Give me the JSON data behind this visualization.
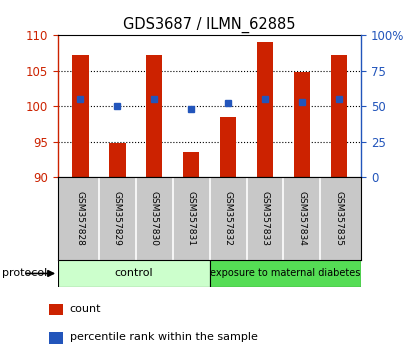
{
  "title": "GDS3687 / ILMN_62885",
  "samples": [
    "GSM357828",
    "GSM357829",
    "GSM357830",
    "GSM357831",
    "GSM357832",
    "GSM357833",
    "GSM357834",
    "GSM357835"
  ],
  "bar_values": [
    107.2,
    94.8,
    107.2,
    93.5,
    98.5,
    109.0,
    104.8,
    107.2
  ],
  "bar_base": 90,
  "blue_pct": [
    55,
    50,
    55,
    48,
    52,
    55,
    53,
    55
  ],
  "ylim_left": [
    90,
    110
  ],
  "ylim_right": [
    0,
    100
  ],
  "yticks_left": [
    90,
    95,
    100,
    105,
    110
  ],
  "yticks_right": [
    0,
    25,
    50,
    75,
    100
  ],
  "ytick_labels_right": [
    "0",
    "25",
    "50",
    "75",
    "100%"
  ],
  "bar_color": "#cc2200",
  "blue_color": "#2255bb",
  "left_axis_color": "#cc2200",
  "right_axis_color": "#2255bb",
  "tick_label_area_bg": "#c8c8c8",
  "group1_label": "control",
  "group2_label": "exposure to maternal diabetes",
  "group1_color": "#ccffcc",
  "group2_color": "#55dd55",
  "protocol_label": "protocol",
  "legend_count_label": "count",
  "legend_pct_label": "percentile rank within the sample",
  "bar_width": 0.45,
  "blue_marker_size": 5
}
